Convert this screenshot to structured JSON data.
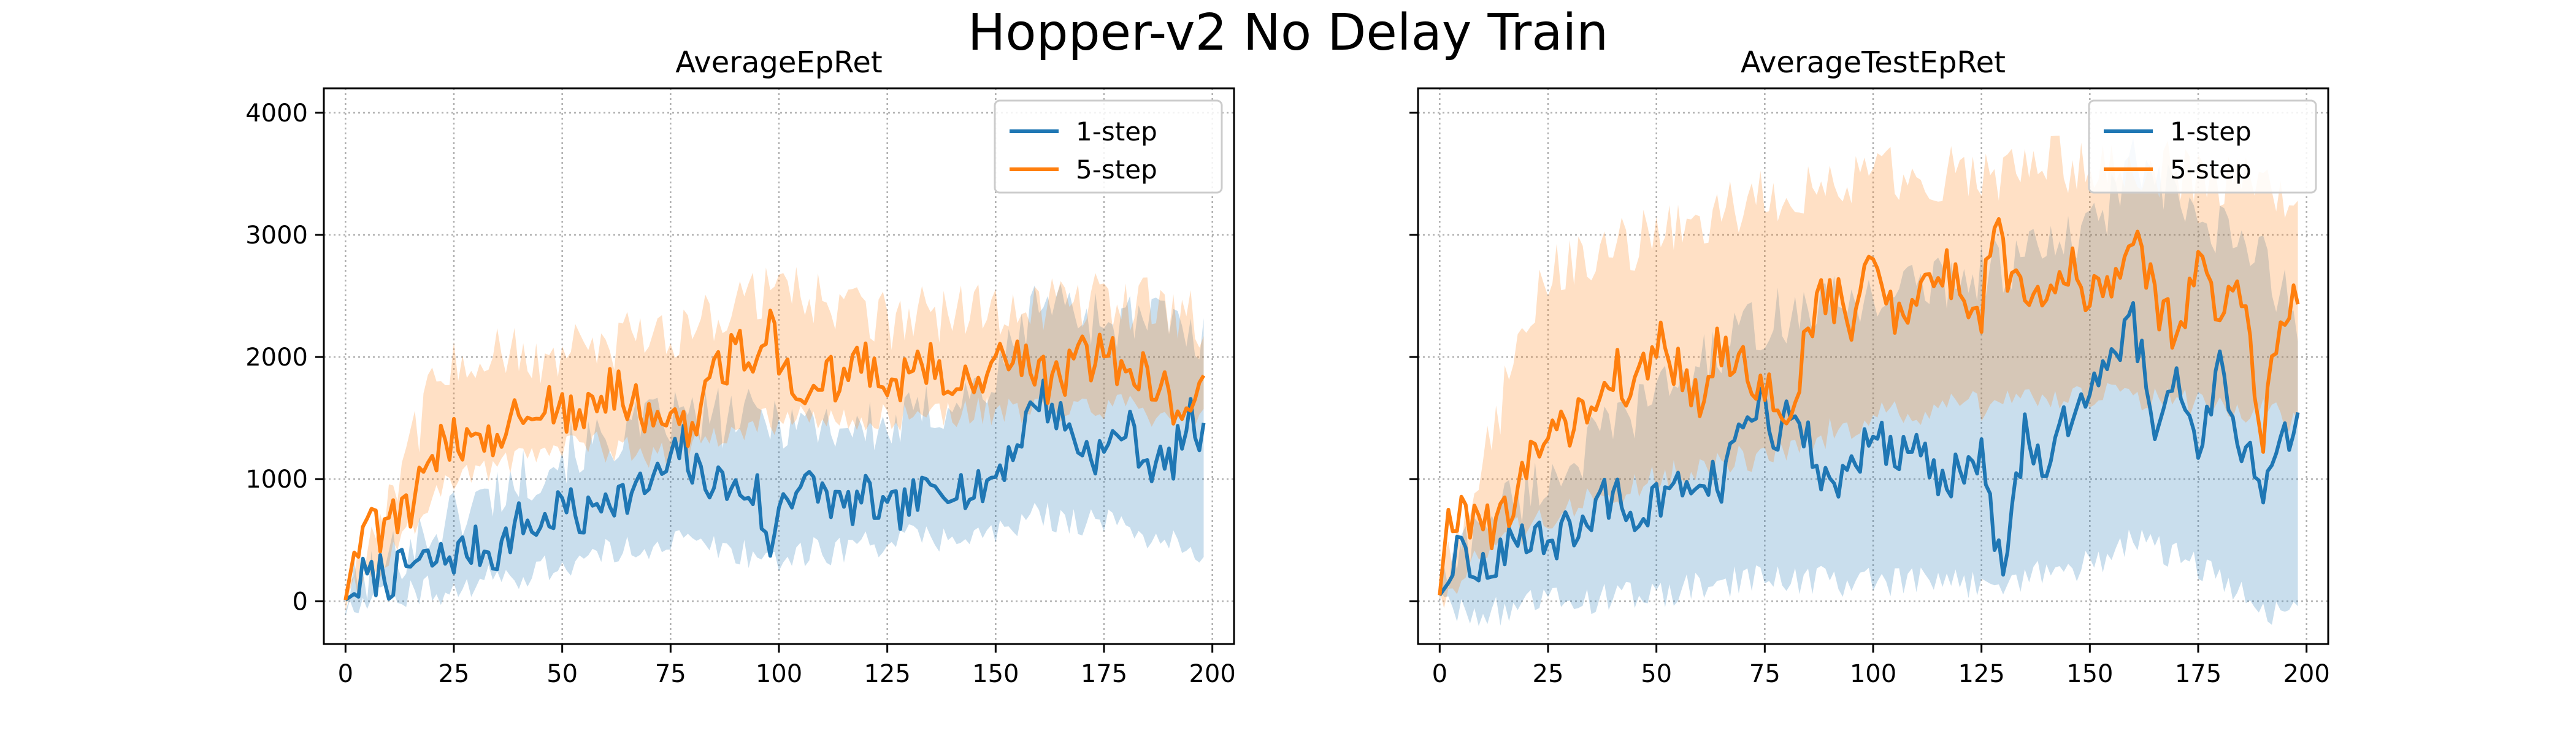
{
  "figure": {
    "title": "Hopper-v2 No Delay Train"
  },
  "colors": {
    "series1": "#1f77b4",
    "series2": "#ff7f0e",
    "band1": "#1f77b4",
    "band2": "#ff7f0e",
    "grid": "#b0b0b0"
  },
  "chart_data": [
    {
      "type": "line",
      "title": "AverageEpRet",
      "xlabel": "",
      "ylabel": "",
      "xlim": [
        -5,
        205
      ],
      "ylim": [
        -350,
        4200
      ],
      "xticks": [
        0,
        25,
        50,
        75,
        100,
        125,
        150,
        175,
        200
      ],
      "yticks": [
        0,
        1000,
        2000,
        3000,
        4000
      ],
      "grid": true,
      "legend": "top-right",
      "x_range": [
        0,
        198
      ],
      "series": [
        {
          "name": "1-step",
          "keypoints_x": [
            0,
            2,
            4,
            6,
            8,
            10,
            15,
            20,
            25,
            30,
            35,
            40,
            45,
            50,
            55,
            60,
            65,
            70,
            75,
            78,
            80,
            85,
            90,
            95,
            98,
            100,
            105,
            110,
            115,
            120,
            125,
            130,
            135,
            140,
            145,
            150,
            155,
            160,
            165,
            170,
            175,
            180,
            185,
            190,
            195,
            198
          ],
          "keypoints_y": [
            10,
            60,
            200,
            170,
            250,
            180,
            300,
            320,
            380,
            440,
            400,
            650,
            600,
            800,
            650,
            900,
            850,
            950,
            1100,
            1300,
            1050,
            1000,
            900,
            900,
            300,
            850,
            950,
            900,
            750,
            850,
            700,
            800,
            900,
            1000,
            850,
            1050,
            1300,
            1700,
            1500,
            1250,
            1200,
            1450,
            1150,
            1100,
            1500,
            1300
          ],
          "band_x": [
            0,
            10,
            25,
            50,
            75,
            100,
            125,
            150,
            160,
            175,
            190,
            198
          ],
          "band_lower": [
            0,
            60,
            100,
            300,
            500,
            350,
            500,
            550,
            700,
            650,
            500,
            300
          ],
          "band_upper": [
            30,
            350,
            700,
            1200,
            1500,
            1500,
            1400,
            1800,
            2500,
            2300,
            2300,
            2100
          ]
        },
        {
          "name": "5-step",
          "keypoints_x": [
            0,
            2,
            4,
            6,
            8,
            10,
            12,
            14,
            16,
            18,
            20,
            22,
            24,
            26,
            28,
            30,
            35,
            40,
            45,
            50,
            55,
            60,
            65,
            70,
            75,
            80,
            85,
            90,
            95,
            98,
            100,
            105,
            110,
            115,
            120,
            125,
            130,
            135,
            140,
            145,
            150,
            155,
            160,
            165,
            170,
            175,
            180,
            185,
            190,
            195,
            198
          ],
          "keypoints_y": [
            10,
            400,
            550,
            700,
            600,
            700,
            750,
            850,
            800,
            1000,
            1100,
            1350,
            1300,
            1400,
            1300,
            1350,
            1400,
            1500,
            1650,
            1600,
            1550,
            1700,
            1650,
            1500,
            1550,
            1450,
            1900,
            2000,
            2100,
            2300,
            1900,
            1750,
            1800,
            1900,
            1950,
            1800,
            1900,
            1900,
            1850,
            1750,
            1900,
            2000,
            1850,
            1800,
            1950,
            2100,
            1850,
            1900,
            1600,
            1750,
            1850
          ],
          "band_x": [
            0,
            10,
            20,
            25,
            50,
            75,
            100,
            125,
            150,
            175,
            198
          ],
          "band_lower": [
            0,
            400,
            800,
            1000,
            1300,
            1200,
            1500,
            1500,
            1550,
            1600,
            1500
          ],
          "band_upper": [
            30,
            900,
            1700,
            2000,
            2000,
            2200,
            2600,
            2300,
            2400,
            2500,
            2300
          ]
        }
      ]
    },
    {
      "type": "line",
      "title": "AverageTestEpRet",
      "xlabel": "",
      "ylabel": "",
      "xlim": [
        -5,
        205
      ],
      "ylim": [
        -350,
        4200
      ],
      "xticks": [
        0,
        25,
        50,
        75,
        100,
        125,
        150,
        175,
        200
      ],
      "yticks": [
        0,
        1000,
        2000,
        3000,
        4000
      ],
      "grid": true,
      "legend": "top-right",
      "x_range": [
        0,
        198
      ],
      "series": [
        {
          "name": "1-step",
          "keypoints_x": [
            0,
            2,
            4,
            6,
            8,
            10,
            15,
            20,
            25,
            30,
            35,
            40,
            45,
            50,
            55,
            60,
            65,
            70,
            75,
            78,
            80,
            85,
            90,
            95,
            100,
            105,
            110,
            115,
            120,
            125,
            130,
            135,
            140,
            145,
            150,
            155,
            160,
            165,
            170,
            175,
            180,
            185,
            190,
            195,
            198
          ],
          "keypoints_y": [
            50,
            150,
            450,
            300,
            200,
            350,
            400,
            500,
            450,
            600,
            700,
            900,
            700,
            800,
            900,
            1000,
            950,
            1400,
            1700,
            1100,
            1600,
            1300,
            900,
            1100,
            1400,
            1200,
            1300,
            900,
            1100,
            1200,
            150,
            1400,
            1100,
            1500,
            1800,
            2000,
            2300,
            1500,
            1800,
            1300,
            1900,
            1300,
            900,
            1300,
            1400
          ],
          "band_x": [
            0,
            10,
            25,
            50,
            75,
            100,
            125,
            150,
            160,
            175,
            190,
            198
          ],
          "band_lower": [
            0,
            -100,
            0,
            50,
            200,
            150,
            150,
            300,
            500,
            300,
            -100,
            0
          ],
          "band_upper": [
            80,
            700,
            1000,
            1700,
            2300,
            2500,
            2700,
            3000,
            3600,
            3100,
            2800,
            2300
          ]
        },
        {
          "name": "5-step",
          "keypoints_x": [
            0,
            2,
            4,
            6,
            8,
            10,
            12,
            14,
            16,
            18,
            20,
            22,
            24,
            26,
            28,
            30,
            35,
            40,
            45,
            50,
            55,
            60,
            65,
            70,
            75,
            80,
            85,
            90,
            95,
            100,
            105,
            110,
            115,
            120,
            125,
            128,
            130,
            135,
            140,
            145,
            150,
            155,
            160,
            165,
            170,
            175,
            180,
            185,
            190,
            195,
            198
          ],
          "keypoints_y": [
            50,
            750,
            600,
            750,
            700,
            800,
            600,
            650,
            800,
            1000,
            1000,
            1200,
            1500,
            1300,
            1700,
            1400,
            1600,
            1900,
            1700,
            2200,
            1900,
            1700,
            2100,
            1900,
            1800,
            1300,
            2300,
            2500,
            2300,
            2800,
            2400,
            2500,
            2700,
            2600,
            2300,
            3250,
            2800,
            2600,
            2500,
            2800,
            2400,
            2700,
            2900,
            2500,
            2200,
            2700,
            2400,
            2600,
            1400,
            2450,
            2450
          ],
          "band_x": [
            0,
            10,
            25,
            50,
            75,
            100,
            125,
            150,
            175,
            198
          ],
          "band_lower": [
            0,
            400,
            700,
            1000,
            1200,
            1500,
            1600,
            1700,
            1600,
            1500
          ],
          "band_upper": [
            100,
            1200,
            2700,
            3000,
            3300,
            3500,
            3500,
            3600,
            3500,
            3300
          ]
        }
      ]
    }
  ]
}
